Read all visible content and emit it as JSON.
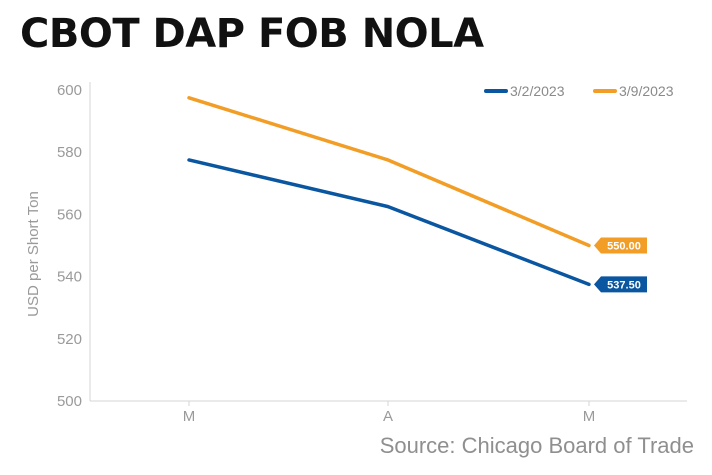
{
  "chart_data": {
    "type": "line",
    "title": "CBOT DAP FOB NOLA",
    "source": "Source: Chicago Board of Trade",
    "xlabel": "",
    "ylabel": "USD per Short Ton",
    "ylim": [
      500,
      600
    ],
    "yticks": [
      500,
      520,
      540,
      560,
      580,
      600
    ],
    "ytick_labels": [
      "500",
      "520",
      "540",
      "560",
      "580",
      "600"
    ],
    "categories": [
      "M",
      "A",
      "M"
    ],
    "grid": false,
    "legend_position": "top-right",
    "series": [
      {
        "name": "3/2/2023",
        "color": "#0a56a0",
        "values": [
          577.5,
          562.5,
          537.5
        ],
        "end_label": "537.50"
      },
      {
        "name": "3/9/2023",
        "color": "#f29d26",
        "values": [
          597.5,
          577.5,
          550.0
        ],
        "end_label": "550.00"
      }
    ]
  }
}
